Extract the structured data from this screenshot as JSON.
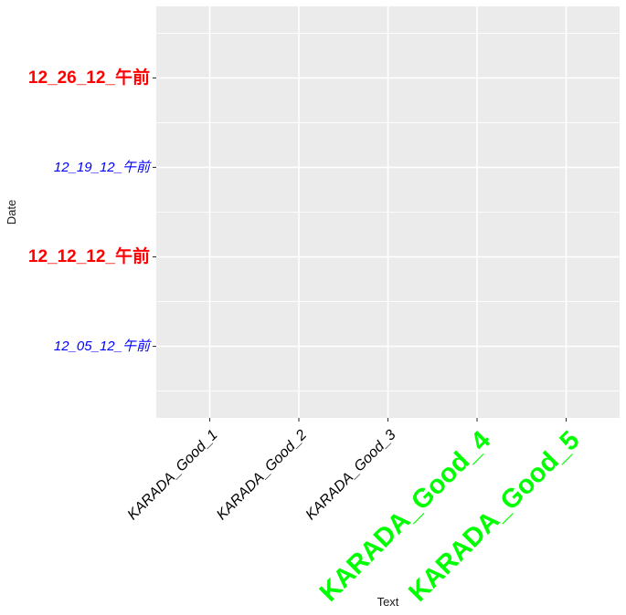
{
  "chart_data": {
    "type": "scatter",
    "xlabel": "Text",
    "ylabel": "Date",
    "x_categories": [
      "KARADA_Good_1",
      "KARADA_Good_2",
      "KARADA_Good_3",
      "KARADA_Good_4",
      "KARADA_Good_5"
    ],
    "y_ticks": [
      "12_05_12_午前",
      "12_12_12_午前",
      "12_19_12_午前",
      "12_26_12_午前"
    ],
    "y_tick_styles": [
      {
        "color": "#0000ff",
        "style": "italic"
      },
      {
        "color": "#ff0000",
        "style": "bold"
      },
      {
        "color": "#0000ff",
        "style": "italic"
      },
      {
        "color": "#ff0000",
        "style": "bold"
      }
    ],
    "x_tick_styles": [
      {
        "color": "#000000",
        "style": "italic"
      },
      {
        "color": "#000000",
        "style": "italic"
      },
      {
        "color": "#000000",
        "style": "italic"
      },
      {
        "color": "#00ff00",
        "style": "bold"
      },
      {
        "color": "#00ff00",
        "style": "bold"
      }
    ],
    "points": [],
    "grid": true,
    "panel_color": "#ebebeb",
    "grid_color": "#ffffff"
  }
}
